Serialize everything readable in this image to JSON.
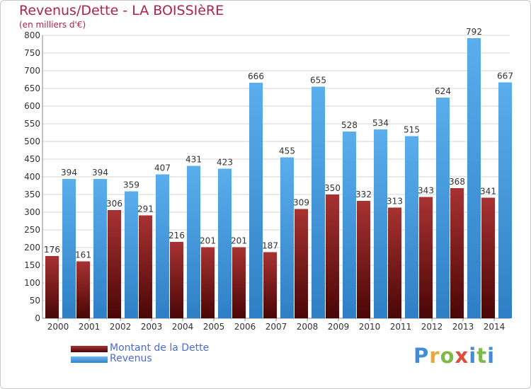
{
  "chart_data": {
    "type": "bar",
    "title": "Revenus/Dette - LA BOISSIèRE",
    "subtitle": "(en milliers d'€)",
    "categories": [
      "2000",
      "2001",
      "2002",
      "2003",
      "2004",
      "2005",
      "2006",
      "2007",
      "2008",
      "2009",
      "2010",
      "2011",
      "2012",
      "2013",
      "2014"
    ],
    "series": [
      {
        "name": "Montant de la Dette",
        "color": "#7a1a1a",
        "values": [
          176,
          161,
          306,
          291,
          216,
          201,
          201,
          187,
          309,
          350,
          332,
          313,
          343,
          368,
          341
        ]
      },
      {
        "name": "Revenus",
        "color": "#4fa2e6",
        "values": [
          394,
          394,
          359,
          407,
          431,
          423,
          666,
          455,
          655,
          528,
          534,
          515,
          624,
          792,
          667
        ]
      }
    ],
    "ylim": [
      0,
      800
    ],
    "yticks": [
      0,
      50,
      100,
      150,
      200,
      250,
      300,
      350,
      400,
      450,
      500,
      550,
      600,
      650,
      700,
      750,
      800
    ],
    "grid": true,
    "legend_position": "bottom-left"
  },
  "logo": {
    "letters": [
      "P",
      "r",
      "o",
      "x",
      "i",
      "t",
      "i"
    ]
  }
}
